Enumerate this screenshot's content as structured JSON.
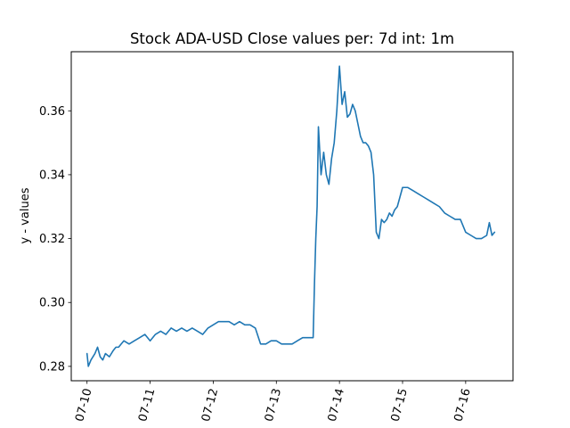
{
  "chart_data": {
    "type": "line",
    "title": "Stock ADA-USD Close values per: 7d int: 1m",
    "xlabel": "",
    "ylabel": "y - values",
    "x_ticks": [
      {
        "label": "07-10",
        "value": "2023-07-10"
      },
      {
        "label": "07-11",
        "value": "2023-07-11"
      },
      {
        "label": "07-12",
        "value": "2023-07-12"
      },
      {
        "label": "07-13",
        "value": "2023-07-13"
      },
      {
        "label": "07-14",
        "value": "2023-07-14"
      },
      {
        "label": "07-15",
        "value": "2023-07-15"
      },
      {
        "label": "07-16",
        "value": "2023-07-16"
      }
    ],
    "y_ticks": [
      0.28,
      0.3,
      0.32,
      0.34,
      0.36
    ],
    "y_tick_labels": [
      "0.28",
      "0.30",
      "0.32",
      "0.34",
      "0.36"
    ],
    "xlim": [
      "2023-07-09 18:00",
      "2023-07-16 18:00"
    ],
    "ylim": [
      0.2755,
      0.3785
    ],
    "grid": false,
    "series": [
      {
        "color": "#1f77b4",
        "x": [
          "2023-07-10 00:00",
          "2023-07-10 00:30",
          "2023-07-10 01:30",
          "2023-07-10 03:00",
          "2023-07-10 04:00",
          "2023-07-10 05:00",
          "2023-07-10 06:00",
          "2023-07-10 07:00",
          "2023-07-10 08:30",
          "2023-07-10 10:00",
          "2023-07-10 11:00",
          "2023-07-10 12:00",
          "2023-07-10 13:00",
          "2023-07-10 14:00",
          "2023-07-10 16:00",
          "2023-07-10 18:00",
          "2023-07-10 20:00",
          "2023-07-10 22:00",
          "2023-07-11 00:00",
          "2023-07-11 02:00",
          "2023-07-11 04:00",
          "2023-07-11 06:00",
          "2023-07-11 08:00",
          "2023-07-11 10:00",
          "2023-07-11 12:00",
          "2023-07-11 14:00",
          "2023-07-11 16:00",
          "2023-07-11 18:00",
          "2023-07-11 20:00",
          "2023-07-11 22:00",
          "2023-07-12 00:00",
          "2023-07-12 02:00",
          "2023-07-12 04:00",
          "2023-07-12 06:00",
          "2023-07-12 08:00",
          "2023-07-12 10:00",
          "2023-07-12 12:00",
          "2023-07-12 14:00",
          "2023-07-12 16:00",
          "2023-07-12 18:00",
          "2023-07-12 20:00",
          "2023-07-12 22:00",
          "2023-07-13 00:00",
          "2023-07-13 02:00",
          "2023-07-13 04:00",
          "2023-07-13 06:00",
          "2023-07-13 08:00",
          "2023-07-13 10:00",
          "2023-07-13 12:00",
          "2023-07-13 13:00",
          "2023-07-13 14:00",
          "2023-07-13 14:30",
          "2023-07-13 15:00",
          "2023-07-13 15:30",
          "2023-07-13 16:00",
          "2023-07-13 17:00",
          "2023-07-13 18:00",
          "2023-07-13 19:00",
          "2023-07-13 20:00",
          "2023-07-13 21:00",
          "2023-07-13 22:00",
          "2023-07-13 23:00",
          "2023-07-14 00:00",
          "2023-07-14 01:00",
          "2023-07-14 02:00",
          "2023-07-14 03:00",
          "2023-07-14 04:00",
          "2023-07-14 05:00",
          "2023-07-14 06:00",
          "2023-07-14 07:00",
          "2023-07-14 08:00",
          "2023-07-14 09:00",
          "2023-07-14 10:00",
          "2023-07-14 11:00",
          "2023-07-14 12:00",
          "2023-07-14 13:00",
          "2023-07-14 14:00",
          "2023-07-14 15:00",
          "2023-07-14 16:00",
          "2023-07-14 17:00",
          "2023-07-14 18:00",
          "2023-07-14 19:00",
          "2023-07-14 20:00",
          "2023-07-14 21:00",
          "2023-07-14 22:00",
          "2023-07-14 23:00",
          "2023-07-15 00:00",
          "2023-07-15 02:00",
          "2023-07-15 04:00",
          "2023-07-15 06:00",
          "2023-07-15 08:00",
          "2023-07-15 10:00",
          "2023-07-15 12:00",
          "2023-07-15 14:00",
          "2023-07-15 16:00",
          "2023-07-15 18:00",
          "2023-07-15 20:00",
          "2023-07-15 22:00",
          "2023-07-16 00:00",
          "2023-07-16 02:00",
          "2023-07-16 04:00",
          "2023-07-16 06:00",
          "2023-07-16 08:00",
          "2023-07-16 09:00",
          "2023-07-16 10:00",
          "2023-07-16 11:00"
        ],
        "values": [
          0.284,
          0.28,
          0.282,
          0.284,
          0.286,
          0.283,
          0.282,
          0.284,
          0.283,
          0.285,
          0.286,
          0.286,
          0.287,
          0.288,
          0.287,
          0.288,
          0.289,
          0.29,
          0.288,
          0.29,
          0.291,
          0.29,
          0.292,
          0.291,
          0.292,
          0.291,
          0.292,
          0.291,
          0.29,
          0.292,
          0.293,
          0.294,
          0.294,
          0.294,
          0.293,
          0.294,
          0.293,
          0.293,
          0.292,
          0.287,
          0.287,
          0.288,
          0.288,
          0.287,
          0.287,
          0.287,
          0.288,
          0.289,
          0.289,
          0.289,
          0.289,
          0.306,
          0.32,
          0.33,
          0.355,
          0.34,
          0.347,
          0.34,
          0.337,
          0.345,
          0.35,
          0.36,
          0.374,
          0.362,
          0.366,
          0.358,
          0.359,
          0.362,
          0.36,
          0.356,
          0.352,
          0.35,
          0.35,
          0.349,
          0.347,
          0.34,
          0.322,
          0.32,
          0.326,
          0.325,
          0.326,
          0.328,
          0.327,
          0.329,
          0.33,
          0.333,
          0.336,
          0.336,
          0.335,
          0.334,
          0.333,
          0.332,
          0.331,
          0.33,
          0.328,
          0.327,
          0.326,
          0.326,
          0.322,
          0.321,
          0.32,
          0.32,
          0.321,
          0.325,
          0.321,
          0.322
        ]
      }
    ]
  }
}
